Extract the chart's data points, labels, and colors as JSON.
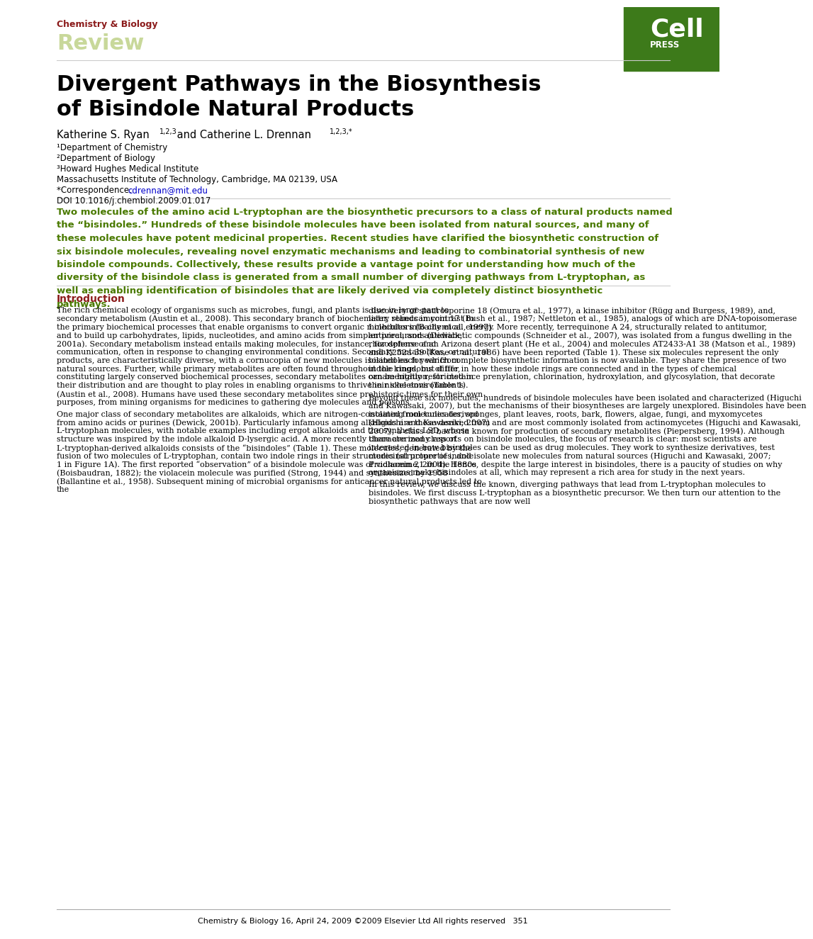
{
  "journal_name": "Chemistry & Biology",
  "section": "Review",
  "cell_press_green": "#3d7a1a",
  "journal_name_color": "#8b1a1a",
  "review_color": "#c8d89a",
  "title": "Divergent Pathways in the Biosynthesis\nof Bisindole Natural Products",
  "authors": "Katherine S. Ryan",
  "authors2": " and Catherine L. Drennan",
  "author_superscript": "1,2,3",
  "author2_superscript": "1,2,3,*",
  "affil1": "¹Department of Chemistry",
  "affil2": "²Department of Biology",
  "affil3": "³Howard Hughes Medical Institute",
  "affil4": "Massachusetts Institute of Technology, Cambridge, MA 02139, USA",
  "correspondence_label": "*Correspondence: ",
  "correspondence_link": "cdrennan@mit.edu",
  "doi": "DOI 10.1016/j.chembiol.2009.01.017",
  "abstract": "Two molecules of the amino acid L-tryptophan are the biosynthetic precursors to a class of natural products named the “bisindoles.” Hundreds of these bisindole molecules have been isolated from natural sources, and many of these molecules have potent medicinal properties. Recent studies have clarified the biosynthetic construction of six bisindole molecules, revealing novel enzymatic mechanisms and leading to combinatorial synthesis of new bisindole compounds. Collectively, these results provide a vantage point for understanding how much of the diversity of the bisindole class is generated from a small number of diverging pathways from L-tryptophan, as well as enabling identification of bisindoles that are likely derived via completely distinct biosynthetic pathways.",
  "intro_heading": "Introduction",
  "intro_col1": "The rich chemical ecology of organisms such as microbes, fungi, and plants is due in large part to secondary metabolism (Austin et al., 2008). This secondary branch of biochemistry stands in contrast to the primary biochemical processes that enable organisms to convert organic molecules into chemical energy and to build up carbohydrates, lipids, nucleotides, and amino acids from simpler precursors (Dewick, 2001a). Secondary metabolism instead entails making molecules, for instance, for defense and communication, often in response to changing environmental conditions. Secondary metabolites, or natural products, are characteristically diverse, with a cornucopia of new molecules isolated each year from natural sources. Further, while primary metabolites are often found throughout the kingdoms of life, constituting largely conserved biochemical processes, secondary metabolites can be highly restricted in their distribution and are thought to play roles in enabling organisms to thrive in niche environments (Austin et al., 2008). Humans have used these secondary metabolites since prehistoric times for their own purposes, from mining organisms for medicines to gathering dye molecules and poisons.\n    One major class of secondary metabolites are alkaloids, which are nitrogen-containing molecules derived from amino acids or purines (Dewick, 2001b). Particularly infamous among alkaloids are those derived from L-tryptophan molecules, with notable examples including ergot alkaloids and the synthetic LSD, whose structure was inspired by the indole alkaloid D-lysergic acid. A more recently characterized class of L-tryptophan-derived alkaloids consists of the “bisindoles” (Table 1). These molecules, generated by the fusion of two molecules of L-tryptophan, contain two indole rings in their structures (structure of indole 1 in Figure 1A). The first reported “observation” of a bisindole molecule was of violacein 21 in the 1880s (Boisbaudran, 1882); the violacein molecule was purified (Strong, 1944) and synthesized by 1958 (Ballantine et al., 1958). Subsequent mining of microbial organisms for anticancer natural products led to the",
  "intro_col2": "discovery of staurosporine 18 (Omura et al., 1977), a kinase inhibitor (Rügg and Burgess, 1989), and, later, rebeccamycin 17 (Bush et al., 1987; Nettleton et al., 1985), analogs of which are DNA-topoisomerase I inhibitors (Bailly et al., 1997). More recently, terrequinone A 24, structurally related to antitumor, antiviral, and antidiabetic compounds (Schneider et al., 2007), was isolated from a fungus dwelling in the rhizosphere of an Arizona desert plant (He et al., 2004) and molecules AT2433-A1 38 (Matson et al., 1989) and K252a 39 (Kase et al., 1986) have been reported (Table 1). These six molecules represent the only bisindoles for which complete biosynthetic information is now available. They share the presence of two indole rings, but differ in how these indole rings are connected and in the types of chemical ornamentation, for instance prenylation, chlorination, hydroxylation, and glycosylation, that decorate their skeletons (Table 1).\n    Beyond these six molecules, hundreds of bisindole molecules have been isolated and characterized (Higuchi and Kawasaki, 2007), but the mechanisms of their biosyntheses are largely unexplored. Bisindoles have been isolated from tunicates, sponges, plant leaves, roots, bark, flowers, algae, fungi, and myxomycetes (Higuchi and Kawasaki, 2007) and are most commonly isolated from actinomycetes (Higuchi and Kawasaki, 2007), a class of bacteria known for production of secondary metabolites (Piepersberg, 1994). Although there are many reports on bisindole molecules, the focus of research is clear: most scientists are interested in how bisindoles can be used as drug molecules. They work to synthesize derivatives, test medicinal properties, and isolate new molecules from natural sources (Higuchi and Kawasaki, 2007; Prudhomme, 2004). Hence, despite the large interest in bisindoles, there is a paucity of studies on why organisms make bisindoles at all, which may represent a rich area for study in the next years.\n    In this review, we discuss the known, diverging pathways that lead from L-tryptophan molecules to bisindoles. We first discuss L-tryptophan as a biosynthetic precursor. We then turn our attention to the biosynthetic pathways that are now well",
  "footer": "Chemistry & Biology 16, April 24, 2009 ©2009 Elsevier Ltd All rights reserved   351",
  "link_color": "#0000cc",
  "highlight_color": "#4a7a00",
  "text_black": "#000000",
  "bg_white": "#ffffff",
  "intro_color": "#8b1a1a"
}
